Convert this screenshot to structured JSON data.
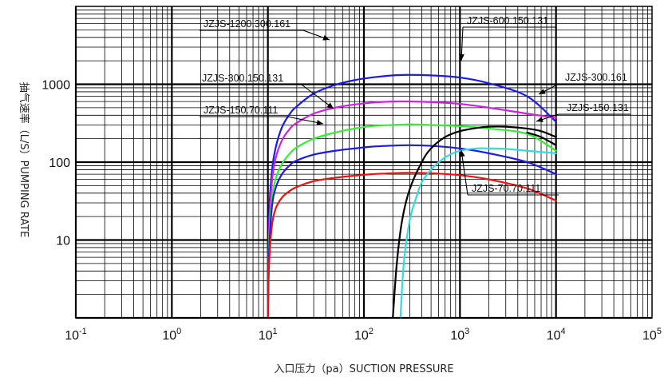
{
  "chart_data": {
    "type": "line",
    "title": "",
    "xlabel": "入口压力（pa）SUCTION PRESSURE",
    "ylabel": "抽气速率（L/S）PUMPING RATE",
    "x_scale": "log",
    "y_scale": "log",
    "xlim": [
      0.1,
      100000
    ],
    "ylim": [
      1,
      10000
    ],
    "x_ticks": [
      {
        "base": "10",
        "exp": "-1"
      },
      {
        "base": "10",
        "exp": "0"
      },
      {
        "base": "10",
        "exp": "1"
      },
      {
        "base": "10",
        "exp": "2"
      },
      {
        "base": "10",
        "exp": "3"
      },
      {
        "base": "10",
        "exp": "4"
      },
      {
        "base": "10",
        "exp": "5"
      }
    ],
    "y_ticks": [
      {
        "value": 10,
        "label": "10"
      },
      {
        "value": 100,
        "label": "100"
      },
      {
        "value": 1000,
        "label": "1000"
      }
    ],
    "grid": true,
    "series": [
      {
        "name": "JZJS-1200.300.161",
        "color": "#1a1aee",
        "x": [
          10,
          10.3,
          11,
          12,
          14,
          17,
          20,
          30,
          50,
          80,
          120,
          200,
          300,
          500,
          1000,
          2000,
          5000,
          10000
        ],
        "y": [
          1,
          20,
          75,
          150,
          280,
          420,
          520,
          760,
          980,
          1130,
          1220,
          1300,
          1320,
          1300,
          1220,
          1030,
          700,
          330
        ]
      },
      {
        "name": "JZJS-600.150.131",
        "color": "#cc22dd",
        "x": [
          10,
          10.3,
          11,
          12,
          14,
          17,
          20,
          30,
          50,
          80,
          120,
          200,
          300,
          500,
          1000,
          2000,
          5000,
          10000
        ],
        "y": [
          1,
          14,
          55,
          110,
          190,
          270,
          320,
          420,
          500,
          550,
          580,
          600,
          600,
          590,
          560,
          500,
          420,
          370
        ]
      },
      {
        "name": "JZJS-300.150.131",
        "color": "#33ee33",
        "x": [
          10,
          10.3,
          11,
          12,
          14,
          17,
          20,
          30,
          50,
          80,
          120,
          200,
          300,
          500,
          1000,
          2000,
          5000,
          10000
        ],
        "y": [
          1,
          9,
          33,
          60,
          95,
          130,
          155,
          200,
          240,
          270,
          290,
          300,
          305,
          300,
          290,
          270,
          230,
          140
        ]
      },
      {
        "name": "JZJS-150.70.111",
        "color": "#1a1aee",
        "x": [
          10,
          10.3,
          11,
          12,
          14,
          17,
          20,
          30,
          50,
          80,
          120,
          200,
          300,
          500,
          1000,
          2000,
          5000,
          10000
        ],
        "y": [
          1,
          7,
          26,
          46,
          70,
          92,
          105,
          125,
          140,
          150,
          158,
          163,
          165,
          162,
          150,
          130,
          100,
          70
        ]
      },
      {
        "name": "JZJS-70.70.111",
        "color": "#ee1111",
        "x": [
          10,
          10.3,
          11,
          12,
          14,
          17,
          20,
          30,
          50,
          80,
          120,
          200,
          300,
          500,
          1000,
          2000,
          5000,
          10000
        ],
        "y": [
          1,
          5,
          15,
          25,
          35,
          43,
          48,
          57,
          63,
          67,
          70,
          72,
          73,
          72,
          68,
          60,
          46,
          32
        ]
      },
      {
        "name": "JZJS-300.161",
        "color": "#000000",
        "x": [
          200,
          220,
          250,
          300,
          400,
          500,
          700,
          1000,
          1500,
          2000,
          3000,
          5000,
          7000,
          10000
        ],
        "y": [
          1,
          5,
          18,
          45,
          100,
          150,
          210,
          250,
          275,
          285,
          285,
          270,
          250,
          210
        ]
      },
      {
        "name": "JZJS-150.131",
        "color": "#33dddd",
        "x": [
          240,
          260,
          300,
          350,
          400,
          500,
          700,
          1000,
          1500,
          2000,
          3000,
          5000,
          10000
        ],
        "y": [
          1,
          5,
          18,
          35,
          55,
          80,
          115,
          140,
          150,
          150,
          148,
          140,
          130
        ]
      },
      {
        "name": "",
        "color": "#000000",
        "x": [
          5000,
          7000,
          10000
        ],
        "y": [
          240,
          210,
          165
        ]
      }
    ],
    "annotations": [
      {
        "text": "JZJS-1200.300.161"
      },
      {
        "text": "JZJS-600.150.131"
      },
      {
        "text": "JZJS-300.150.131"
      },
      {
        "text": "JZJS-150.70.111"
      },
      {
        "text": "JZJS-300.161"
      },
      {
        "text": "JZJS-150.131"
      },
      {
        "text": "JZJS-70.70.111"
      }
    ]
  }
}
